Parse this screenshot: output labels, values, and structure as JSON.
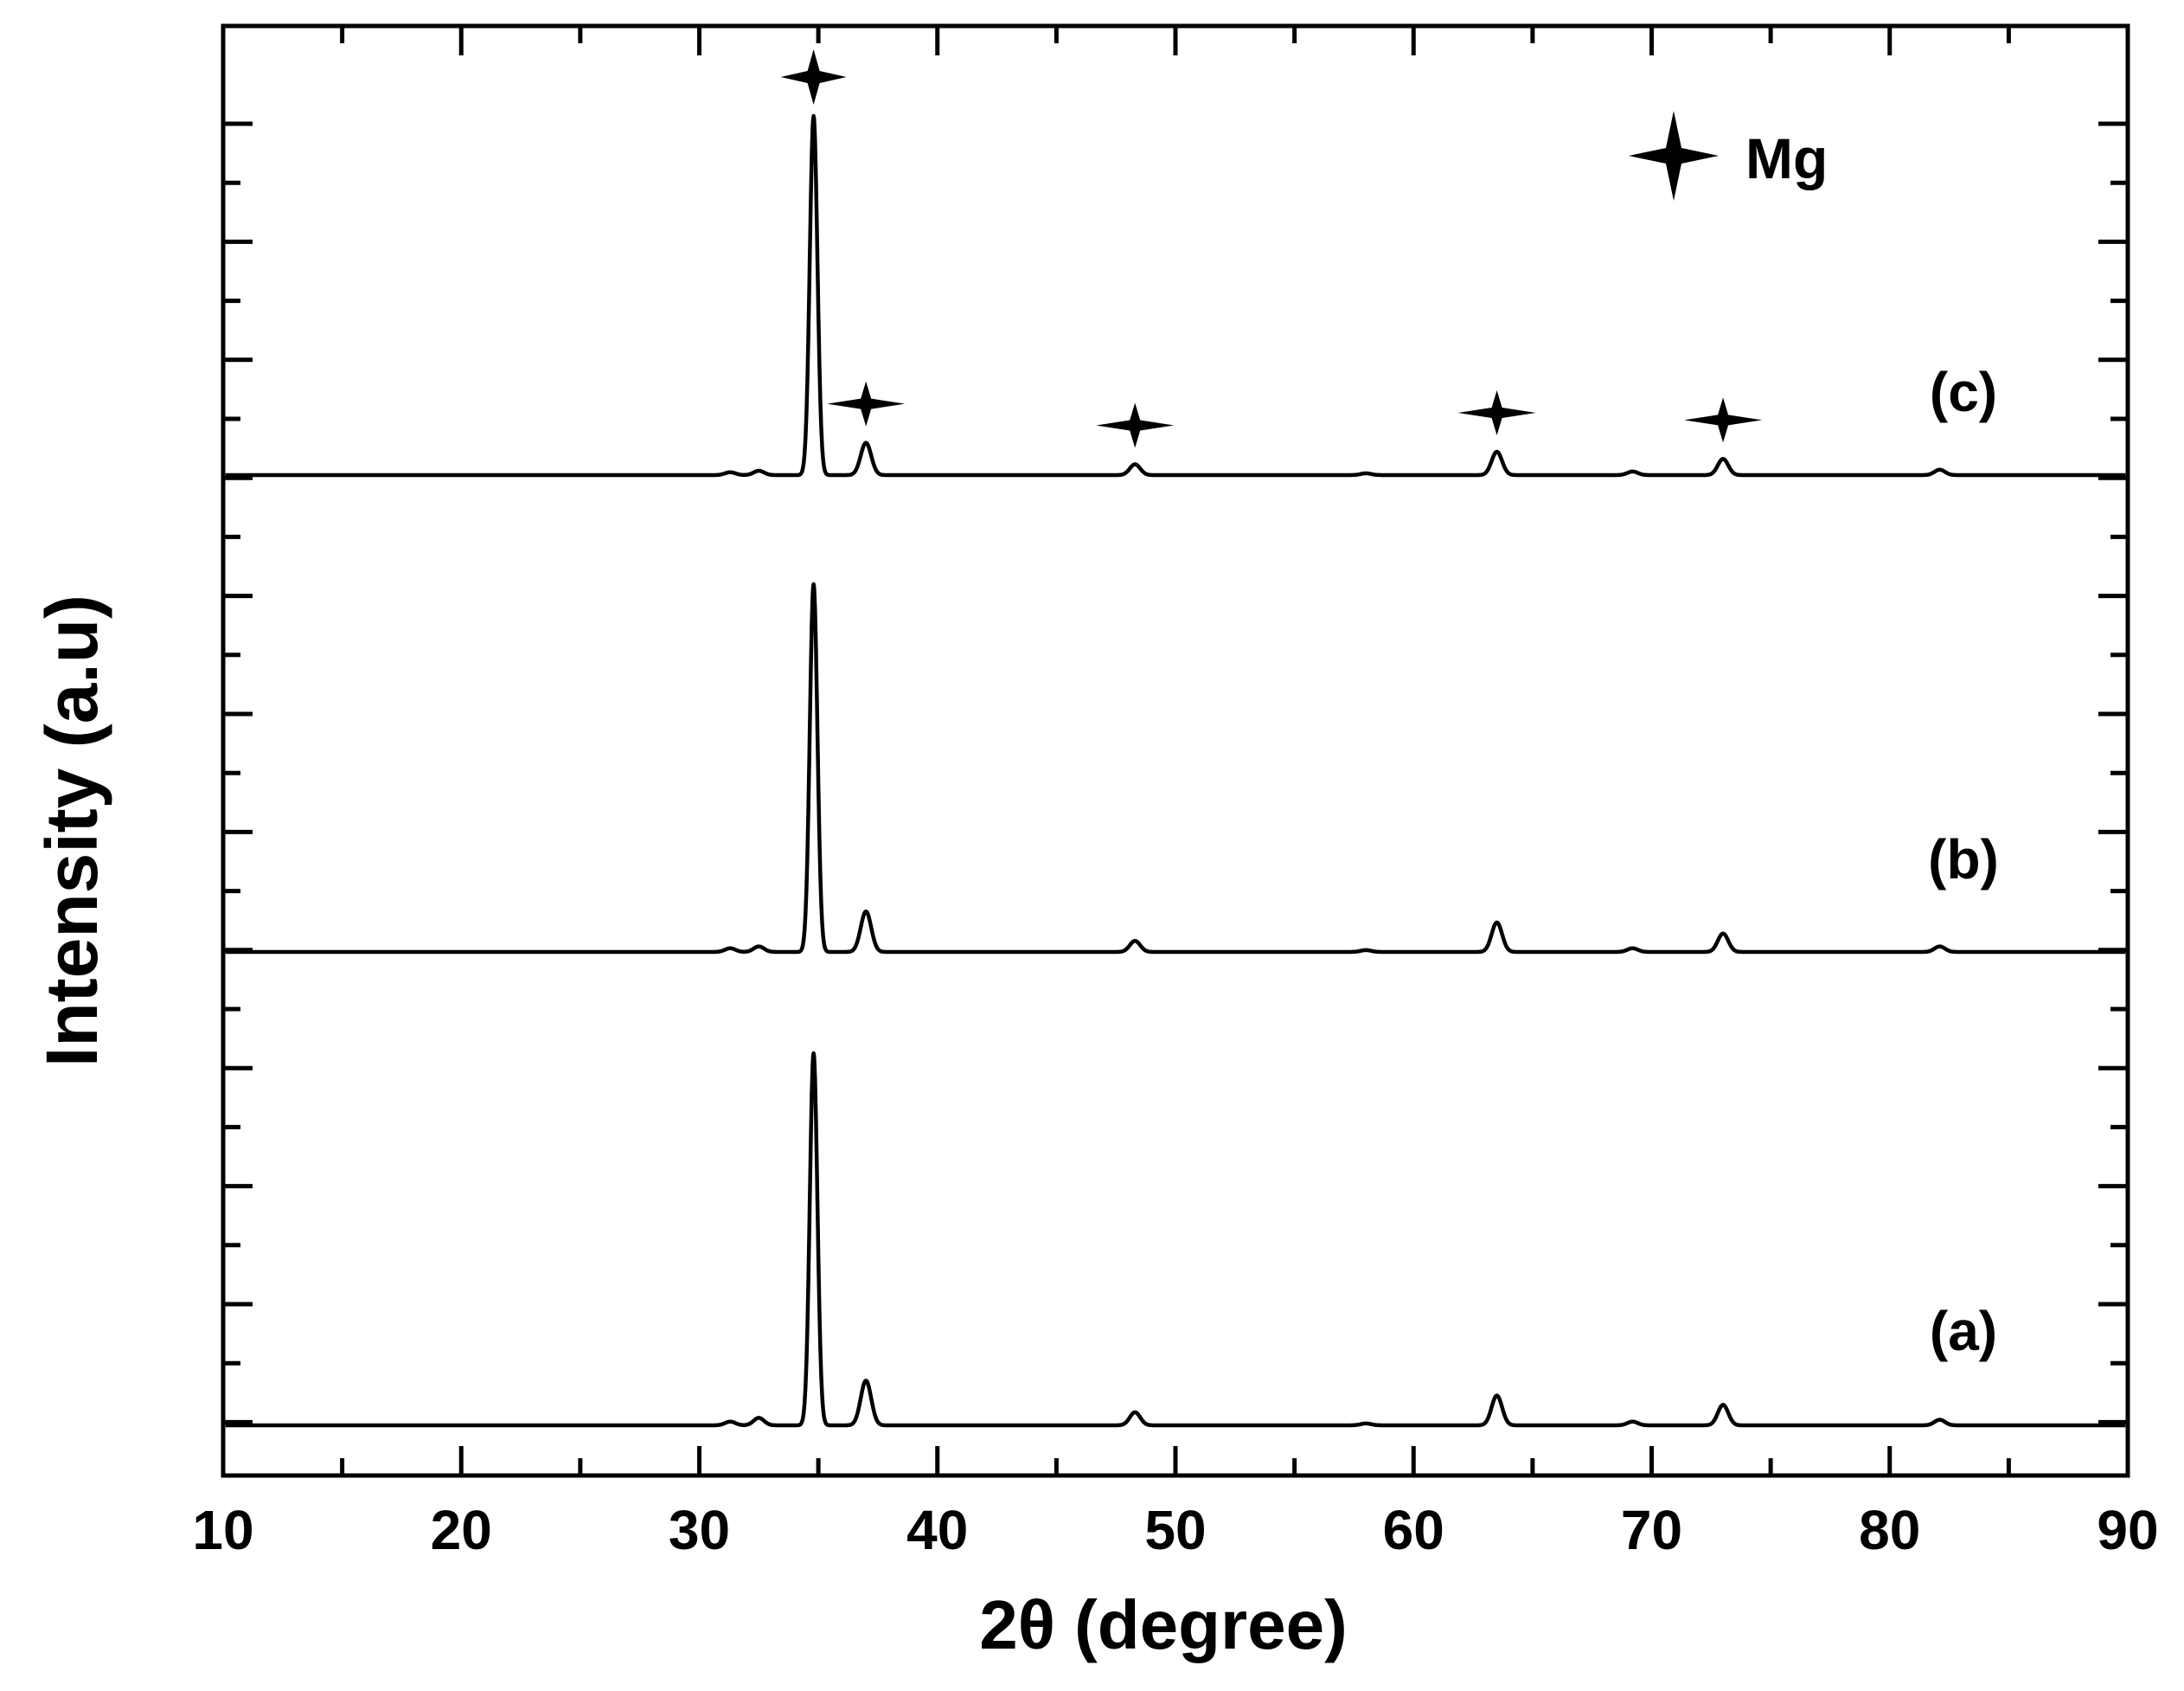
{
  "chart_data": {
    "type": "line",
    "title": "",
    "xlabel": "2θ (degree)",
    "ylabel": "Intensity (a.u)",
    "xlim": [
      10,
      90
    ],
    "xticks": [
      "10",
      "20",
      "30",
      "40",
      "50",
      "60",
      "70",
      "80",
      "90"
    ],
    "y_ticks_labeled": false,
    "grid": false,
    "stacked_offset": true,
    "legend": {
      "position": "top-right",
      "symbol": "four-point-star",
      "label": "Mg"
    },
    "peaks_2theta": [
      31.3,
      32.5,
      34.8,
      37.0,
      48.3,
      58.0,
      63.5,
      69.2,
      73.0,
      82.1
    ],
    "series": [
      {
        "name": "(a)",
        "peaks": [
          {
            "x": 31.3,
            "y": 0.01
          },
          {
            "x": 32.5,
            "y": 0.02
          },
          {
            "x": 34.8,
            "y": 1.0
          },
          {
            "x": 37.0,
            "y": 0.12
          },
          {
            "x": 48.3,
            "y": 0.035
          },
          {
            "x": 58.0,
            "y": 0.005
          },
          {
            "x": 63.5,
            "y": 0.08
          },
          {
            "x": 69.2,
            "y": 0.01
          },
          {
            "x": 73.0,
            "y": 0.055
          },
          {
            "x": 82.1,
            "y": 0.015
          }
        ]
      },
      {
        "name": "(b)",
        "peaks": [
          {
            "x": 31.3,
            "y": 0.01
          },
          {
            "x": 32.5,
            "y": 0.015
          },
          {
            "x": 34.8,
            "y": 1.0
          },
          {
            "x": 37.0,
            "y": 0.11
          },
          {
            "x": 48.3,
            "y": 0.03
          },
          {
            "x": 58.0,
            "y": 0.005
          },
          {
            "x": 63.5,
            "y": 0.08
          },
          {
            "x": 69.2,
            "y": 0.01
          },
          {
            "x": 73.0,
            "y": 0.05
          },
          {
            "x": 82.1,
            "y": 0.015
          }
        ]
      },
      {
        "name": "(c)",
        "peaks": [
          {
            "x": 31.3,
            "y": 0.008
          },
          {
            "x": 32.5,
            "y": 0.012
          },
          {
            "x": 34.8,
            "y": 1.0
          },
          {
            "x": 37.0,
            "y": 0.09
          },
          {
            "x": 48.3,
            "y": 0.03
          },
          {
            "x": 58.0,
            "y": 0.005
          },
          {
            "x": 63.5,
            "y": 0.065
          },
          {
            "x": 69.2,
            "y": 0.01
          },
          {
            "x": 73.0,
            "y": 0.045
          },
          {
            "x": 82.1,
            "y": 0.015
          }
        ]
      }
    ],
    "annotations": [
      {
        "symbol": "star",
        "series": "(c)",
        "x": 34.8
      },
      {
        "symbol": "star",
        "series": "(c)",
        "x": 37.0
      },
      {
        "symbol": "star",
        "series": "(c)",
        "x": 48.3
      },
      {
        "symbol": "star",
        "series": "(c)",
        "x": 63.5
      },
      {
        "symbol": "star",
        "series": "(c)",
        "x": 73.0
      }
    ]
  }
}
